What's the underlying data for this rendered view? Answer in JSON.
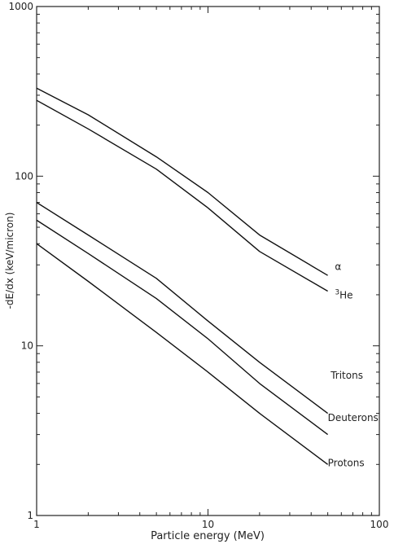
{
  "chart_data": {
    "type": "line",
    "title": "",
    "xlabel": "Particle energy (MeV)",
    "ylabel": "-dE/dx (keV/micron)",
    "xscale": "log",
    "yscale": "log",
    "xlim": [
      1,
      100
    ],
    "ylim": [
      1,
      1000
    ],
    "grid": false,
    "x_ticks": [
      "1",
      "10",
      "100"
    ],
    "y_ticks": [
      "1",
      "10",
      "100",
      "1000"
    ],
    "series": [
      {
        "name": "α",
        "x": [
          1,
          2,
          5,
          10,
          20,
          50
        ],
        "y": [
          330,
          230,
          130,
          80,
          45,
          26
        ]
      },
      {
        "name": "3He",
        "x": [
          1,
          2,
          5,
          10,
          20,
          50
        ],
        "y": [
          280,
          190,
          110,
          65,
          36,
          21
        ]
      },
      {
        "name": "Tritons",
        "x": [
          1,
          2,
          5,
          10,
          20,
          50
        ],
        "y": [
          70,
          45,
          25,
          14,
          8,
          4
        ]
      },
      {
        "name": "Deuterons",
        "x": [
          1,
          2,
          5,
          10,
          20,
          50
        ],
        "y": [
          55,
          35,
          19,
          11,
          6,
          3
        ]
      },
      {
        "name": "Protons",
        "x": [
          1,
          2,
          5,
          10,
          20,
          50
        ],
        "y": [
          40,
          24,
          12,
          7,
          4,
          2
        ]
      }
    ],
    "curve_labels": [
      {
        "text": "α",
        "x": 55,
        "y": 28
      },
      {
        "text": "He",
        "sup": "3",
        "x": 55,
        "y": 19
      },
      {
        "text": "Tritons",
        "x": 52,
        "y": 6.4
      },
      {
        "text": "Deuterons",
        "x": 50,
        "y": 3.6
      },
      {
        "text": "Protons",
        "x": 50,
        "y": 1.95
      }
    ]
  }
}
